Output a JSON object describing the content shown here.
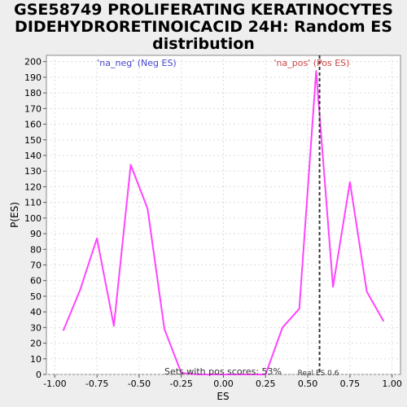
{
  "chart_data": {
    "type": "line",
    "title": "GSE58749 PROLIFERATING KERATINOCYTES\nDIDEHYDRORETINOICACID 24H: Random ES\ndistribution",
    "xlabel": "ES",
    "ylabel": "P(ES)",
    "xlim": [
      -1.05,
      1.05
    ],
    "ylim": [
      0,
      204
    ],
    "x_ticks": [
      "-1.00",
      "-0.75",
      "-0.50",
      "-0.25",
      "0.00",
      "0.25",
      "0.50",
      "0.75",
      "1.00"
    ],
    "y_ticks": [
      "0",
      "10",
      "20",
      "30",
      "40",
      "50",
      "60",
      "70",
      "80",
      "90",
      "100",
      "110",
      "120",
      "130",
      "140",
      "150",
      "160",
      "170",
      "180",
      "190",
      "200"
    ],
    "grid": true,
    "series": [
      {
        "color": "#ff44ff",
        "x": [
          -0.95,
          -0.85,
          -0.75,
          -0.65,
          -0.55,
          -0.45,
          -0.35,
          -0.25,
          -0.15,
          -0.05,
          0.05,
          0.15,
          0.25,
          0.35,
          0.45,
          0.55,
          0.65,
          0.75,
          0.85,
          0.95
        ],
        "y": [
          28,
          54,
          87,
          31,
          134,
          106,
          29,
          1,
          0,
          0,
          0,
          0,
          0,
          30,
          42,
          194,
          56,
          123,
          53,
          34
        ]
      }
    ],
    "real_es": 0.57,
    "annotations": {
      "neg_label": "'na_neg' (Neg ES)",
      "pos_label": "'na_pos' (Pos ES)",
      "sets_text": "Sets with pos scores: 53%",
      "real_es_text": "Real ES 0.6"
    },
    "colors": {
      "line": "#ff44ff",
      "neg_label": "#4444cc",
      "pos_label": "#cc4444",
      "grid": "#dddddd",
      "real_es_line": "#333333"
    }
  }
}
